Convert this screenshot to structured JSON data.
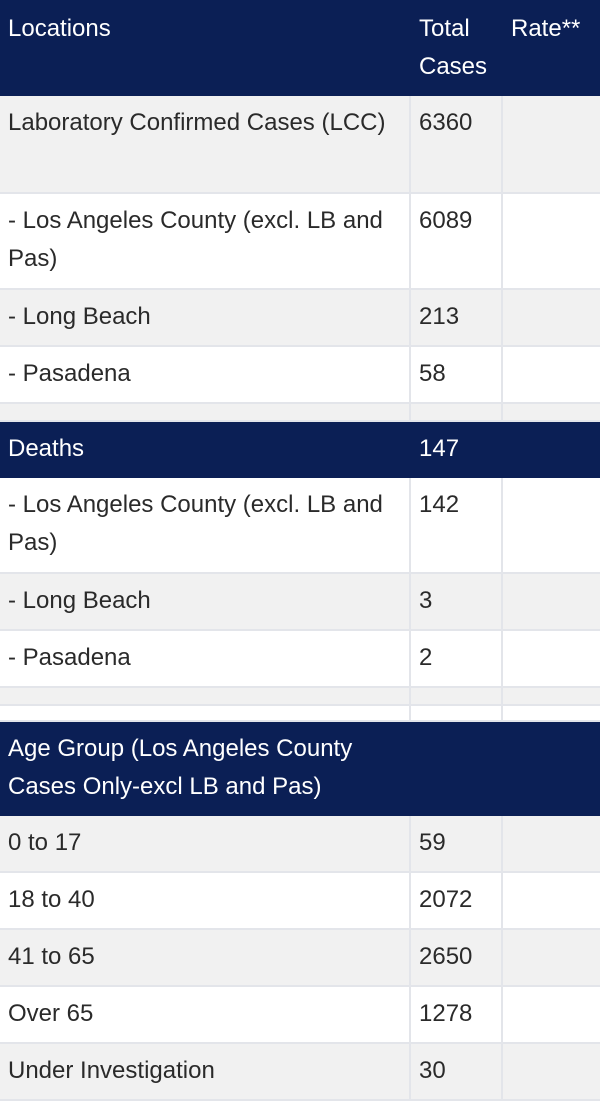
{
  "header": {
    "locations": "Locations",
    "total_cases": "Total Cases",
    "rate": "Rate**"
  },
  "cases": [
    {
      "label": "Laboratory Confirmed Cases (LCC)",
      "value": "6360"
    },
    {
      "label": "- Los Angeles County (excl. LB and Pas)",
      "value": "6089"
    },
    {
      "label": "- Long Beach",
      "value": "213"
    },
    {
      "label": "- Pasadena",
      "value": "58"
    }
  ],
  "deaths_header": {
    "label": "Deaths",
    "value": "147"
  },
  "deaths": [
    {
      "label": "- Los Angeles County (excl. LB and Pas)",
      "value": "142"
    },
    {
      "label": "- Long Beach",
      "value": "3"
    },
    {
      "label": "- Pasadena",
      "value": "2"
    }
  ],
  "age_header": {
    "label": "Age Group (Los Angeles County Cases Only-excl LB and Pas)"
  },
  "age_groups": [
    {
      "label": "0 to 17",
      "value": "59"
    },
    {
      "label": "18 to 40",
      "value": "2072"
    },
    {
      "label": "41 to 65",
      "value": "2650"
    },
    {
      "label": "Over 65",
      "value": "1278"
    },
    {
      "label": "Under Investigation",
      "value": "30"
    }
  ]
}
